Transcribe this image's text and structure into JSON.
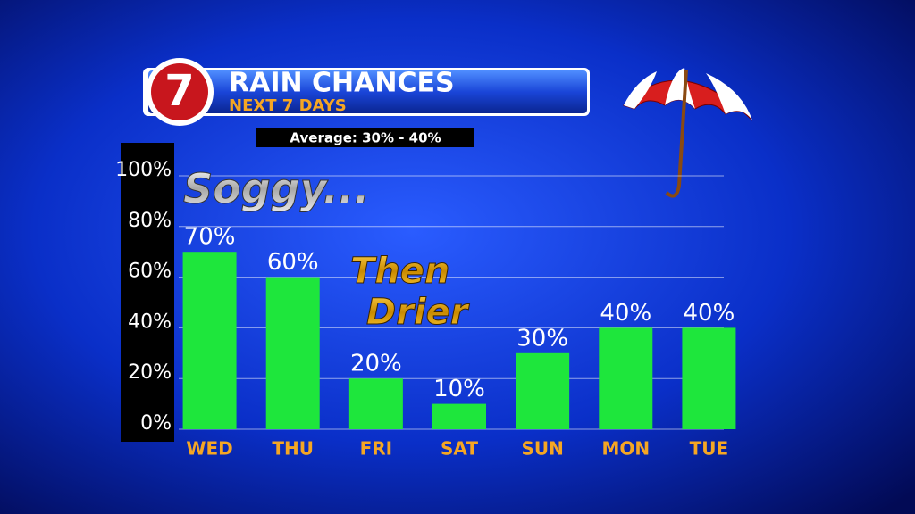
{
  "chart_data": {
    "type": "bar",
    "logo": "7",
    "title": "RAIN CHANCES",
    "subtitle": "NEXT 7 DAYS",
    "annotations": [
      "Average: 30% - 40%",
      "Soggy...",
      "Then",
      "Drier"
    ],
    "categories": [
      "WED",
      "THU",
      "FRI",
      "SAT",
      "SUN",
      "MON",
      "TUE"
    ],
    "values": [
      70,
      60,
      20,
      10,
      30,
      40,
      40
    ],
    "value_labels": [
      "70%",
      "60%",
      "20%",
      "10%",
      "30%",
      "40%",
      "40%"
    ],
    "color": "#1ee63c",
    "ylim": [
      0,
      100
    ],
    "yticks": [
      {
        "value": 0,
        "label": "0%"
      },
      {
        "value": 20,
        "label": "20%"
      },
      {
        "value": 40,
        "label": "40%"
      },
      {
        "value": 60,
        "label": "60%"
      },
      {
        "value": 80,
        "label": "80%"
      },
      {
        "value": 100,
        "label": "100%"
      }
    ],
    "grid": true
  }
}
